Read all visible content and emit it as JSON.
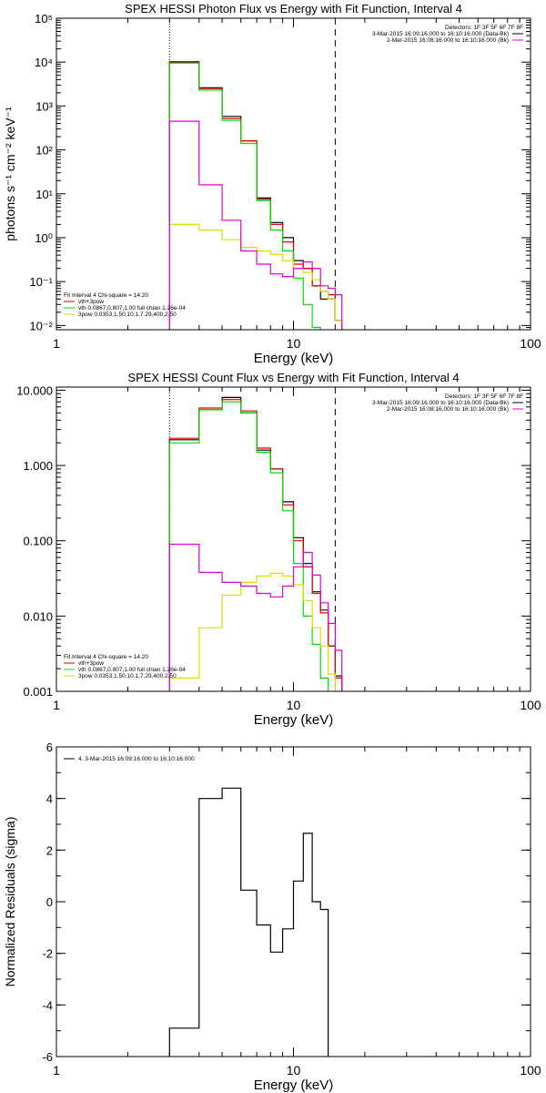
{
  "chart_data": [
    {
      "type": "line",
      "step": true,
      "title": "SPEX HESSI Photon Flux vs Energy with Fit Function, Interval 4",
      "xlabel": "Energy (keV)",
      "ylabel": "photons s⁻¹ cm⁻² keV⁻¹",
      "xscale": "log",
      "yscale": "log",
      "xlim": [
        1,
        100
      ],
      "ylim": [
        0.008,
        100000
      ],
      "xticks": [
        1,
        10,
        100
      ],
      "xticklabels": [
        "1",
        "10",
        "100"
      ],
      "yticks": [
        0.01,
        0.1,
        1,
        10,
        100,
        1000,
        10000,
        100000
      ],
      "yticklabels": [
        "10⁻²",
        "10⁻¹",
        "10⁰",
        "10¹",
        "10²",
        "10³",
        "10⁴",
        "10⁵"
      ],
      "vlines": [
        {
          "x": 3.0,
          "style": "dotted"
        },
        {
          "x": 15.0,
          "style": "dashed"
        }
      ],
      "bin_edges": [
        3.0,
        4.0,
        5.0,
        6.0,
        7.0,
        8.0,
        9.0,
        10.0,
        11.0,
        12.0,
        13.0,
        14.0,
        15.0,
        16.0,
        17.0
      ],
      "series": [
        {
          "name": "3-Mar-2015 16:09:16.000 to 16:10:16.000 (Data-Bk)",
          "color": "#000000",
          "values": [
            10000,
            2600,
            580,
            160,
            8,
            2.2,
            1.0,
            0.3,
            0.2,
            0.08,
            0.04,
            0.04,
            0.013,
            null
          ]
        },
        {
          "name": "vth+3pow",
          "color": "#dd0000",
          "values": [
            10300,
            2500,
            520,
            160,
            7.5,
            2.0,
            0.8,
            0.25,
            0.2,
            0.08,
            0.06,
            0.05,
            0.013,
            null
          ]
        },
        {
          "name": "vth 0.0867,0.807,1.00  full chian 1.26e-04",
          "color": "#00dd00",
          "values": [
            9500,
            2300,
            470,
            140,
            7,
            1.5,
            0.5,
            0.12,
            0.03,
            0.009,
            null,
            null,
            null,
            null
          ]
        },
        {
          "name": "3pow 0.0353,1.50,10.1,7.29,400,2.50",
          "color": "#dddd00",
          "values": [
            2.0,
            1.5,
            0.9,
            0.6,
            0.5,
            0.42,
            0.3,
            0.2,
            0.16,
            0.11,
            0.06,
            0.04,
            0.013,
            null
          ]
        },
        {
          "name": "2-Mar-2015 16:08:16.000 to 16:10:16.000 (Bk)",
          "color": "#dd00dd",
          "values": [
            450,
            16,
            2.5,
            0.5,
            0.25,
            0.15,
            0.13,
            0.2,
            0.28,
            0.2,
            0.08,
            0.07,
            0.05,
            null
          ]
        }
      ],
      "legend_left_title": "Fit Interval  4    Chi-square = 14.20",
      "legend_left": [
        {
          "label": "vth+3pow",
          "color": "#dd0000"
        },
        {
          "label": "vth 0.0867,0.807,1.00  full chian 1.26e-04",
          "color": "#00dd00"
        },
        {
          "label": "3pow 0.0353,1.50,10.1,7.29,400,2.50",
          "color": "#dddd00"
        }
      ],
      "legend_right_title": "Detectors: 1F 3F 5F 6F 7F 8F",
      "legend_right": [
        {
          "label": "3-Mar-2015 16:09:16.000 to 16:10:16.000 (Data-Bk)",
          "color": "#000000"
        },
        {
          "label": "2-Mar-2015 16:08:16.000 to 16:10:16.000 (Bk)",
          "color": "#dd00dd"
        }
      ]
    },
    {
      "type": "line",
      "step": true,
      "title": "SPEX HESSI Count Flux vs Energy with Fit Function, Interval 4",
      "xlabel": "Energy (keV)",
      "ylabel": "",
      "xscale": "log",
      "yscale": "log",
      "xlim": [
        1,
        100
      ],
      "ylim": [
        0.001,
        11
      ],
      "xticks": [
        1,
        10,
        100
      ],
      "xticklabels": [
        "1",
        "10",
        "100"
      ],
      "yticks": [
        0.001,
        0.01,
        0.1,
        1,
        10
      ],
      "yticklabels": [
        "0.001",
        "0.010",
        "0.100",
        "1.000",
        "10.000"
      ],
      "vlines": [
        {
          "x": 3.0,
          "style": "dotted"
        },
        {
          "x": 15.0,
          "style": "dashed"
        }
      ],
      "bin_edges": [
        3.0,
        4.0,
        5.0,
        6.0,
        7.0,
        8.0,
        9.0,
        10.0,
        11.0,
        12.0,
        13.0,
        14.0,
        15.0,
        16.0,
        17.0
      ],
      "series": [
        {
          "name": "3-Mar-2015 16:09:16.000 to 16:10:16.000 (Data-Bk)",
          "color": "#000000",
          "values": [
            2.2,
            5.5,
            8.0,
            5.0,
            1.6,
            0.9,
            0.33,
            0.11,
            0.05,
            0.021,
            0.012,
            0.004,
            0.0016,
            null
          ]
        },
        {
          "name": "vth+3pow",
          "color": "#dd0000",
          "values": [
            2.3,
            5.8,
            7.5,
            5.3,
            1.7,
            0.9,
            0.3,
            0.1,
            0.045,
            0.02,
            0.011,
            0.004,
            0.0015,
            null
          ]
        },
        {
          "name": "vth 0.0867,0.807,1.00  full chian 1.26e-04",
          "color": "#00dd00",
          "values": [
            2.0,
            5.5,
            7.0,
            5.0,
            1.5,
            0.8,
            0.25,
            0.05,
            0.01,
            0.0042,
            0.0015,
            0.0006,
            null,
            null
          ]
        },
        {
          "name": "3pow 0.0353,1.50,10.1,7.29,400,2.50",
          "color": "#dddd00",
          "values": [
            0.0015,
            0.007,
            0.019,
            0.028,
            0.034,
            0.037,
            0.034,
            0.026,
            0.016,
            0.007,
            0.004,
            0.0017,
            0.001,
            null
          ]
        },
        {
          "name": "2-Mar-2015 16:08:16.000 to 16:10:16.000 (Bk)",
          "color": "#dd00dd",
          "values": [
            0.09,
            0.038,
            0.028,
            0.025,
            0.02,
            0.018,
            0.025,
            0.045,
            0.07,
            0.035,
            0.015,
            0.008,
            0.0035,
            null
          ]
        }
      ],
      "legend_left_title": "Fit Interval  4    Chi-square = 14.20",
      "legend_left": [
        {
          "label": "vth+3pow",
          "color": "#dd0000"
        },
        {
          "label": "vth 0.0867,0.807,1.00  full chian 1.26e-04",
          "color": "#00dd00"
        },
        {
          "label": "3pow 0.0353,1.50,10.1,7.29,400,2.50",
          "color": "#dddd00"
        }
      ],
      "legend_right_title": "Detectors: 1F 3F 5F 6F 7F 8F",
      "legend_right": [
        {
          "label": "3-Mar-2015 16:09:16.000 to 16:10:16.000 (Data-Bk)",
          "color": "#000000"
        },
        {
          "label": "2-Mar-2015 16:08:16.000 to 16:10:16.000 (Bk)",
          "color": "#dd00dd"
        }
      ]
    },
    {
      "type": "line",
      "step": true,
      "title": "",
      "xlabel": "Energy (keV)",
      "ylabel": "Normalized Residuals (sigma)",
      "xscale": "log",
      "yscale": "linear",
      "xlim": [
        1,
        100
      ],
      "ylim": [
        -6,
        6
      ],
      "xticks": [
        1,
        10,
        100
      ],
      "xticklabels": [
        "1",
        "10",
        "100"
      ],
      "yticks": [
        -6,
        -4,
        -2,
        0,
        2,
        4,
        6
      ],
      "yticklabels": [
        "-6",
        "-4",
        "-2",
        "0",
        "2",
        "4",
        "6"
      ],
      "vlines": [],
      "bin_edges": [
        3.0,
        4.0,
        5.0,
        6.0,
        7.0,
        8.0,
        9.0,
        10.0,
        11.0,
        12.0,
        13.0,
        14.0,
        15.0,
        16.0,
        17.0
      ],
      "series": [
        {
          "name": "4.  3-Mar-2015 16:09:16.000 to 16:10:16.000",
          "color": "#000000",
          "values": [
            -4.9,
            4.0,
            4.4,
            0.45,
            -0.9,
            -1.95,
            -1.05,
            0.8,
            2.65,
            0.0,
            -0.3,
            null,
            null,
            null
          ]
        }
      ],
      "legend_left_title": "",
      "legend_left": [
        {
          "label": "4.  3-Mar-2015 16:09:16.000 to 16:10:16.000",
          "color": "#000000"
        }
      ],
      "legend_right_title": "",
      "legend_right": []
    }
  ]
}
